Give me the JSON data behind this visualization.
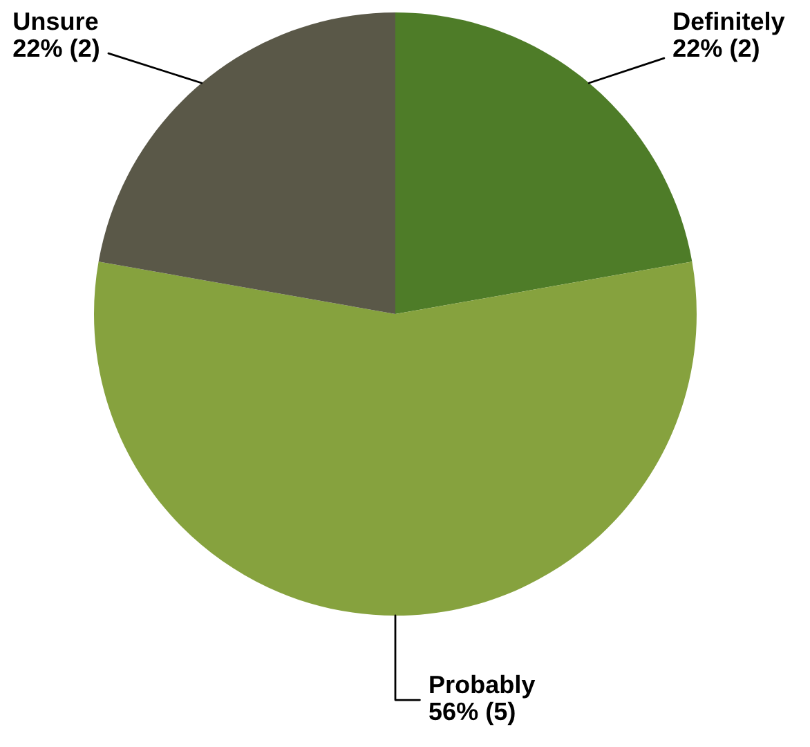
{
  "chart_data": {
    "type": "pie",
    "categories": [
      "Definitely",
      "Probably",
      "Unsure"
    ],
    "values": [
      2,
      5,
      2
    ],
    "value_labels": [
      "22% (2)",
      "56% (5)",
      "22% (2)"
    ],
    "colors": [
      "#4e7c28",
      "#86a23e",
      "#5a5848"
    ]
  }
}
